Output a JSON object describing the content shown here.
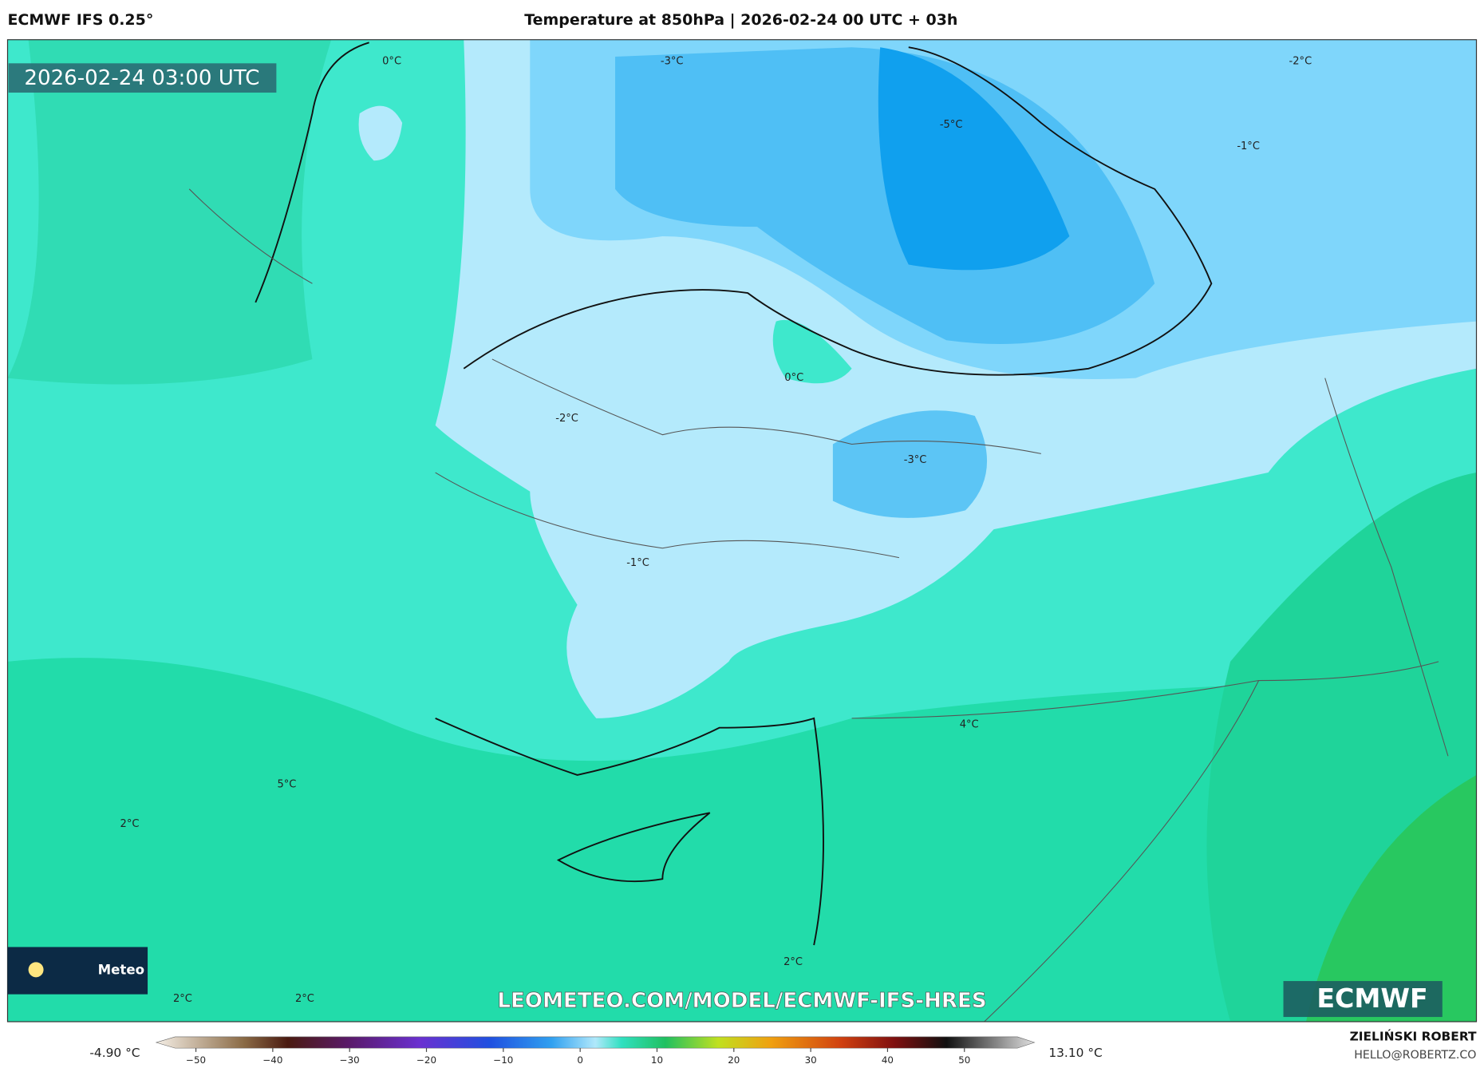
{
  "header": {
    "model": "ECMWF IFS 0.25°",
    "title": "Temperature at 850hPa | 2026-02-24 00 UTC + 03h"
  },
  "map": {
    "timestamp": "2026-02-24 03:00 UTC",
    "contour_labels": [
      "0°C",
      "-3°C",
      "-5°C",
      "-2°C",
      "-1°C",
      "0°C",
      "-2°C",
      "-3°C",
      "-1°C",
      "4°C",
      "5°C",
      "2°C",
      "2°C",
      "2°C",
      "2°C"
    ],
    "watermark": "LEOMETEO.COM/MODEL/ECMWF-IFS-HRES",
    "badge": "Meteo",
    "logo": "ECMWF"
  },
  "colorbar": {
    "min_label": "-4.90 °C",
    "max_label": "13.10 °C",
    "ticks": [
      "−50",
      "−40",
      "−30",
      "−20",
      "−10",
      "0",
      "10",
      "20",
      "30",
      "40",
      "50"
    ]
  },
  "footer": {
    "author": "ZIELIŃSKI ROBERT",
    "email": "HELLO@ROBERTZ.CO"
  }
}
